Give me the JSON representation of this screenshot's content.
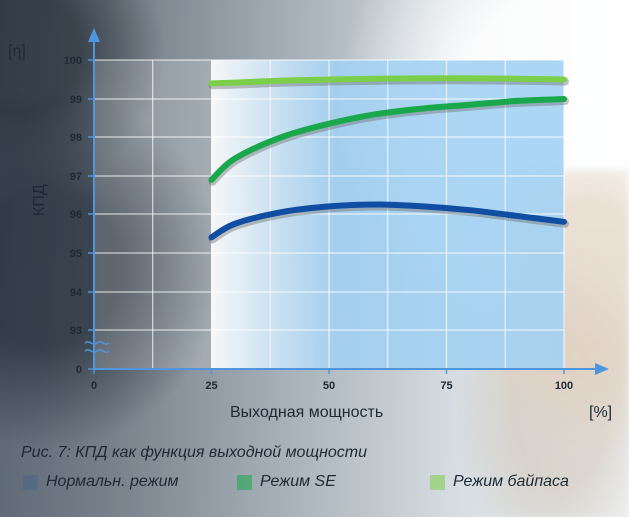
{
  "caption": "Рис. 7: КПД как функция выходной мощности",
  "colors": {
    "normal_mode": "#0f4ea3",
    "se_mode": "#19a84b",
    "bypass_mode": "#7ccf4a",
    "shade_start": "#ffffff",
    "shade_end": "#9fd0f2",
    "axis": "#4e97df"
  },
  "chart_data": {
    "type": "line",
    "ylabel": "КПД",
    "xlabel": "Выходная мощность",
    "y_unit": "[η]",
    "x_unit": "[%]",
    "xlim": [
      0,
      100
    ],
    "ylim": [
      0,
      100
    ],
    "x_ticks": [
      0,
      25,
      50,
      75,
      100
    ],
    "y_ticks": [
      0,
      93,
      94,
      95,
      96,
      97,
      98,
      99,
      100
    ],
    "grid": true,
    "legend_position": "bottom",
    "series": [
      {
        "name": "Нормальн. режим",
        "x": [
          25,
          30,
          40,
          50,
          60,
          70,
          80,
          90,
          100
        ],
        "values": [
          95.4,
          95.75,
          96.05,
          96.2,
          96.25,
          96.2,
          96.1,
          95.95,
          95.8
        ]
      },
      {
        "name": "Режим SE",
        "x": [
          25,
          30,
          40,
          50,
          60,
          70,
          80,
          90,
          100
        ],
        "values": [
          96.9,
          97.45,
          98.0,
          98.35,
          98.6,
          98.75,
          98.85,
          98.95,
          99.0
        ]
      },
      {
        "name": "Режим байпаса",
        "x": [
          25,
          30,
          40,
          50,
          60,
          70,
          80,
          90,
          100
        ],
        "values": [
          99.4,
          99.42,
          99.47,
          99.5,
          99.52,
          99.53,
          99.53,
          99.52,
          99.5
        ]
      }
    ]
  }
}
